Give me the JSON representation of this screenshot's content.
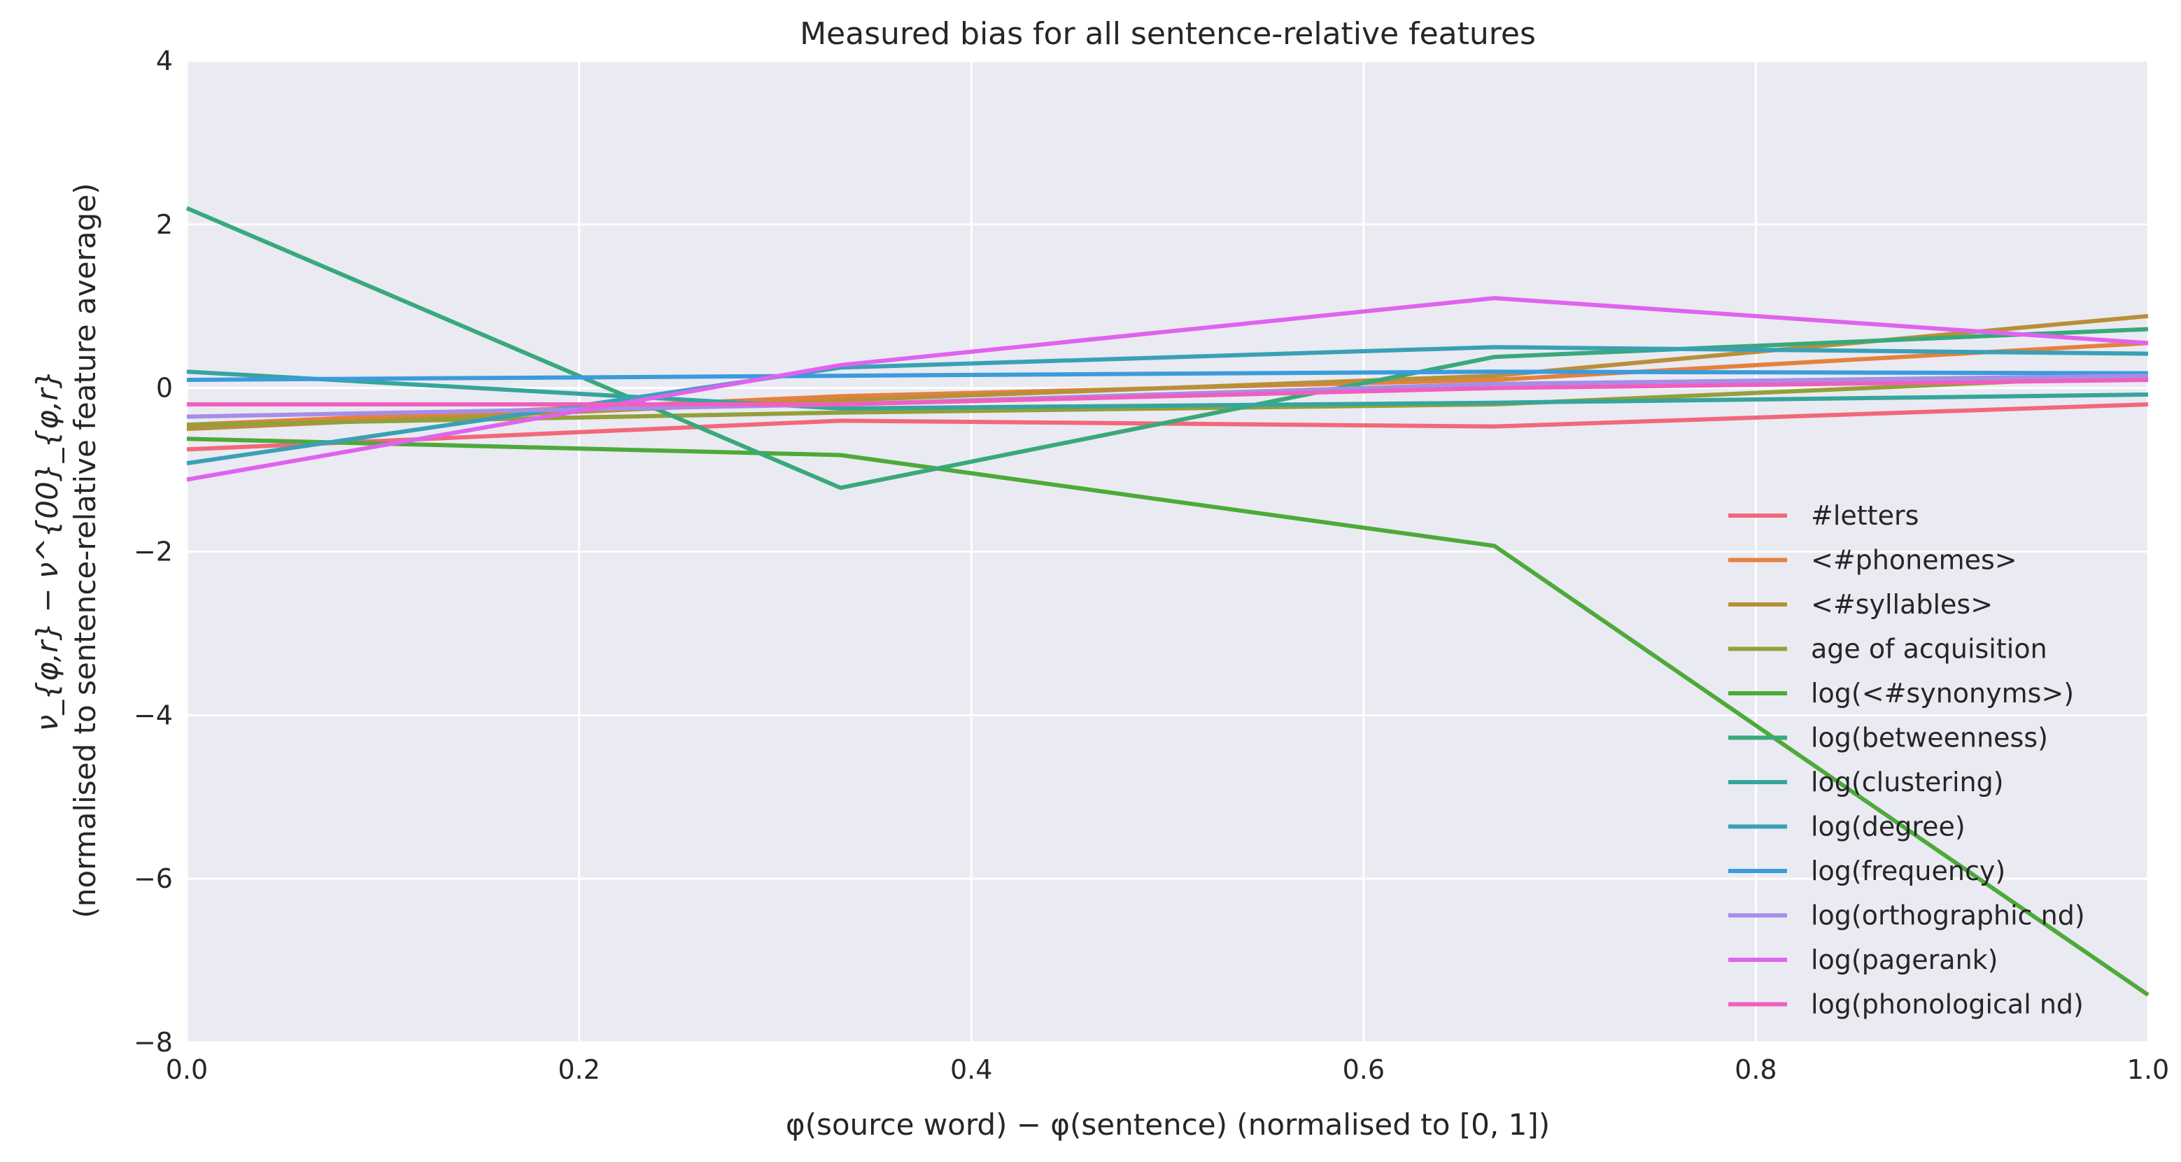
{
  "chart_data": {
    "type": "line",
    "title": "Measured bias for all sentence-relative features",
    "xlabel": "φ(source word) − φ(sentence) (normalised to [0, 1])",
    "ylabel_line1": "ν_{φ,r} − ν^{00}_{φ,r}",
    "ylabel_line2": "(normalised to sentence-relative feature average)",
    "xlim": [
      0.0,
      1.0
    ],
    "ylim": [
      -8,
      4
    ],
    "xticks": [
      "0.0",
      "0.2",
      "0.4",
      "0.6",
      "0.8",
      "1.0"
    ],
    "yticks": [
      "−8",
      "−6",
      "−4",
      "−2",
      "0",
      "2",
      "4"
    ],
    "grid": true,
    "legend_position": "lower-right",
    "x": [
      0.0,
      0.3333,
      0.6667,
      1.0
    ],
    "series": [
      {
        "name": "#letters",
        "color": "#f2687a",
        "values": [
          -0.75,
          -0.4,
          -0.47,
          -0.2
        ]
      },
      {
        "name": "<#phonemes>",
        "color": "#e5813d",
        "values": [
          -0.45,
          -0.1,
          0.1,
          0.55
        ]
      },
      {
        "name": "<#syllables>",
        "color": "#b8903a",
        "values": [
          -0.5,
          -0.15,
          0.15,
          0.88
        ]
      },
      {
        "name": "age of acquisition",
        "color": "#93a03a",
        "values": [
          -0.45,
          -0.3,
          -0.2,
          0.15
        ]
      },
      {
        "name": "log(<#synonyms>)",
        "color": "#4daa3a",
        "values": [
          -0.62,
          -0.82,
          -1.93,
          -7.42
        ]
      },
      {
        "name": "log(betweenness)",
        "color": "#38a97a",
        "values": [
          2.2,
          -1.22,
          0.38,
          0.72
        ]
      },
      {
        "name": "log(clustering)",
        "color": "#36a59c",
        "values": [
          0.2,
          -0.25,
          -0.18,
          -0.08
        ]
      },
      {
        "name": "log(degree)",
        "color": "#39a1b5",
        "values": [
          -0.92,
          0.25,
          0.5,
          0.42
        ]
      },
      {
        "name": "log(frequency)",
        "color": "#3b9bdc",
        "values": [
          0.1,
          0.15,
          0.2,
          0.18
        ]
      },
      {
        "name": "log(orthographic nd)",
        "color": "#a58ee8",
        "values": [
          -0.35,
          -0.2,
          0.05,
          0.15
        ]
      },
      {
        "name": "log(pagerank)",
        "color": "#df63ef",
        "values": [
          -1.12,
          0.28,
          1.1,
          0.55
        ]
      },
      {
        "name": "log(phonological nd)",
        "color": "#ef5fbf",
        "values": [
          -0.2,
          -0.2,
          0.0,
          0.1
        ]
      }
    ]
  }
}
